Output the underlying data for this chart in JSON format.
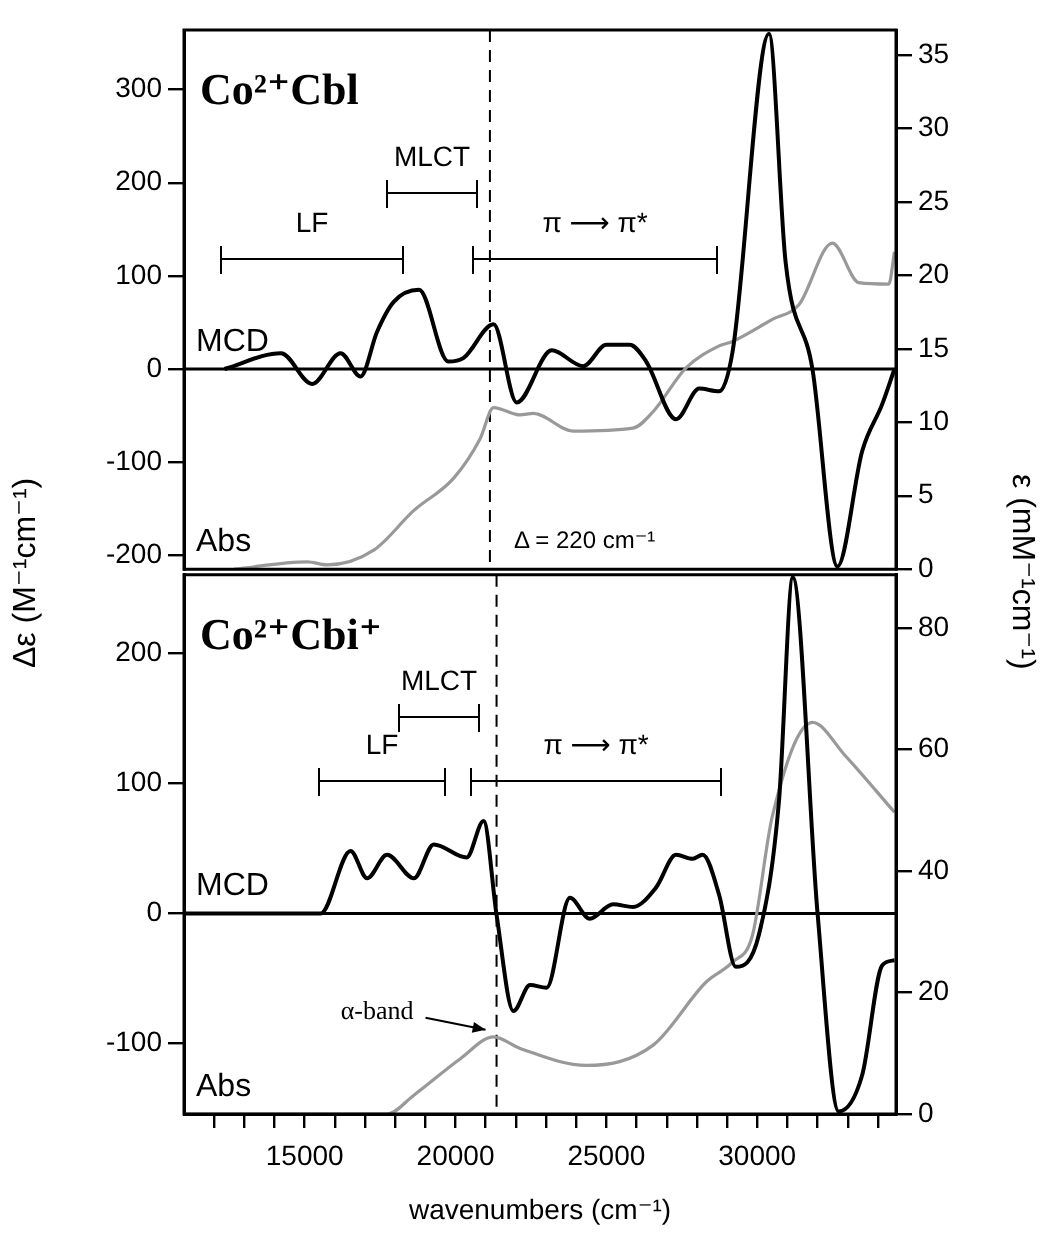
{
  "chart_data": [
    {
      "type": "line",
      "title": "Co²⁺Cbl",
      "ylabel": "Δε (M⁻¹cm⁻¹)",
      "y2label": "ε (mM⁻¹cm⁻¹)",
      "xlim": [
        11000,
        34600
      ],
      "ylim": [
        -215,
        364
      ],
      "yticks": [
        -200,
        -100,
        0,
        100,
        200,
        300
      ],
      "y2lim": [
        0,
        36.7
      ],
      "y2ticks": [
        0,
        5,
        10,
        15,
        20,
        25,
        30,
        35
      ],
      "tick_labels": "y",
      "grid": false,
      "legend": false,
      "marker": "none",
      "line_style": "solid",
      "series": [
        {
          "name": "MCD",
          "color": "#000000",
          "x": [
            12340,
            14210,
            15250,
            16190,
            16850,
            17400,
            17950,
            18790,
            19760,
            20270,
            21260,
            22030,
            23190,
            24230,
            25000,
            25770,
            26320,
            27310,
            28080,
            28740,
            29180,
            30390,
            30940,
            31830,
            32660,
            33480,
            34140,
            34550
          ],
          "values": [
            0,
            17,
            -16,
            17,
            -8,
            40,
            72,
            85,
            8,
            12,
            48,
            -36,
            20,
            3,
            26,
            26,
            8,
            -54,
            -21,
            -24,
            18,
            360,
            115,
            0,
            -212,
            -88,
            -38,
            0
          ]
        },
        {
          "name": "Abs",
          "color": "#999999",
          "axis": "y2",
          "x": [
            12670,
            15090,
            15750,
            17290,
            18620,
            19940,
            20820,
            21260,
            22140,
            22580,
            23900,
            25880,
            26540,
            27640,
            28740,
            29180,
            30500,
            31380,
            32490,
            33370,
            34360,
            34550
          ],
          "values": [
            0,
            0.5,
            0.3,
            1.3,
            4.0,
            6.2,
            8.9,
            11.0,
            10.5,
            10.6,
            9.4,
            9.6,
            10.7,
            13.7,
            15.2,
            15.5,
            17.0,
            18.0,
            22.2,
            19.5,
            19.4,
            21.6
          ]
        }
      ],
      "ref_lines": [
        {
          "axis": "y",
          "value": 0,
          "color": "#000000",
          "line_style": "solid"
        },
        {
          "axis": "x",
          "value": 21140,
          "color": "#000000",
          "line_style": "dashed"
        }
      ],
      "annotations": [
        "LF",
        "MLCT",
        "π ⟶ π*",
        {
          "text": "Δ = 220 cm⁻¹",
          "x": 21140,
          "y": -185
        }
      ]
    },
    {
      "type": "line",
      "title": "Co²⁺Cbi⁺",
      "xlabel": "wavenumbers (cm⁻¹)",
      "xlim": [
        11000,
        34600
      ],
      "xticks": [
        {
          "value": 12000,
          "label": null
        },
        {
          "value": 13000,
          "label": null
        },
        {
          "value": 14000,
          "label": null
        },
        15000,
        {
          "value": 16000,
          "label": null
        },
        {
          "value": 17000,
          "label": null
        },
        {
          "value": 18000,
          "label": null
        },
        {
          "value": 19000,
          "label": null
        },
        20000,
        {
          "value": 21000,
          "label": null
        },
        {
          "value": 22000,
          "label": null
        },
        {
          "value": 23000,
          "label": null
        },
        {
          "value": 24000,
          "label": null
        },
        25000,
        {
          "value": 26000,
          "label": null
        },
        {
          "value": 27000,
          "label": null
        },
        {
          "value": 28000,
          "label": null
        },
        {
          "value": 29000,
          "label": null
        },
        30000,
        {
          "value": 31000,
          "label": null
        },
        {
          "value": 32000,
          "label": null
        },
        {
          "value": 33000,
          "label": null
        },
        {
          "value": 34000,
          "label": null
        }
      ],
      "ylim": [
        -154,
        260
      ],
      "yticks": [
        -100,
        0,
        100,
        200
      ],
      "y2lim": [
        0,
        88.8
      ],
      "y2ticks": [
        0,
        20,
        40,
        60,
        80
      ],
      "grid": false,
      "legend": false,
      "marker": "none",
      "line_style": "solid",
      "series": [
        {
          "name": "MCD",
          "color": "#000000",
          "x": [
            11050,
            15530,
            16520,
            17070,
            17730,
            18620,
            19280,
            20370,
            20930,
            21360,
            21920,
            22470,
            23020,
            23790,
            24450,
            25220,
            25880,
            26650,
            27310,
            27860,
            28190,
            28740,
            29290,
            30060,
            30720,
            31180,
            32000,
            32700,
            33480,
            34140,
            34550
          ],
          "values": [
            0,
            0,
            48,
            27,
            45,
            27,
            53,
            43,
            71,
            -1,
            -75,
            -55,
            -57,
            12,
            -4,
            7,
            5,
            20,
            45,
            42,
            45,
            14,
            -41,
            -16,
            86,
            258,
            0,
            -152,
            -124,
            -40,
            -36
          ]
        },
        {
          "name": "Abs",
          "color": "#999999",
          "axis": "y2",
          "x": [
            11050,
            15000,
            17730,
            18620,
            20160,
            21260,
            22140,
            24340,
            26540,
            28300,
            29180,
            29840,
            30500,
            31830,
            32920,
            34550
          ],
          "values": [
            0,
            0,
            0,
            3.1,
            9.1,
            12.7,
            10.8,
            8.0,
            11.3,
            21.7,
            25,
            29.4,
            49,
            64.5,
            59,
            49.7
          ]
        }
      ],
      "ref_lines": [
        {
          "axis": "y",
          "value": 0,
          "color": "#000000",
          "line_style": "solid"
        },
        {
          "axis": "x",
          "value": 21360,
          "color": "#000000",
          "line_style": "dashed"
        }
      ],
      "annotations": [
        "LF",
        "MLCT",
        "π ⟶ π*",
        {
          "text": "α-band",
          "x": 21260,
          "y": -94
        }
      ]
    }
  ]
}
